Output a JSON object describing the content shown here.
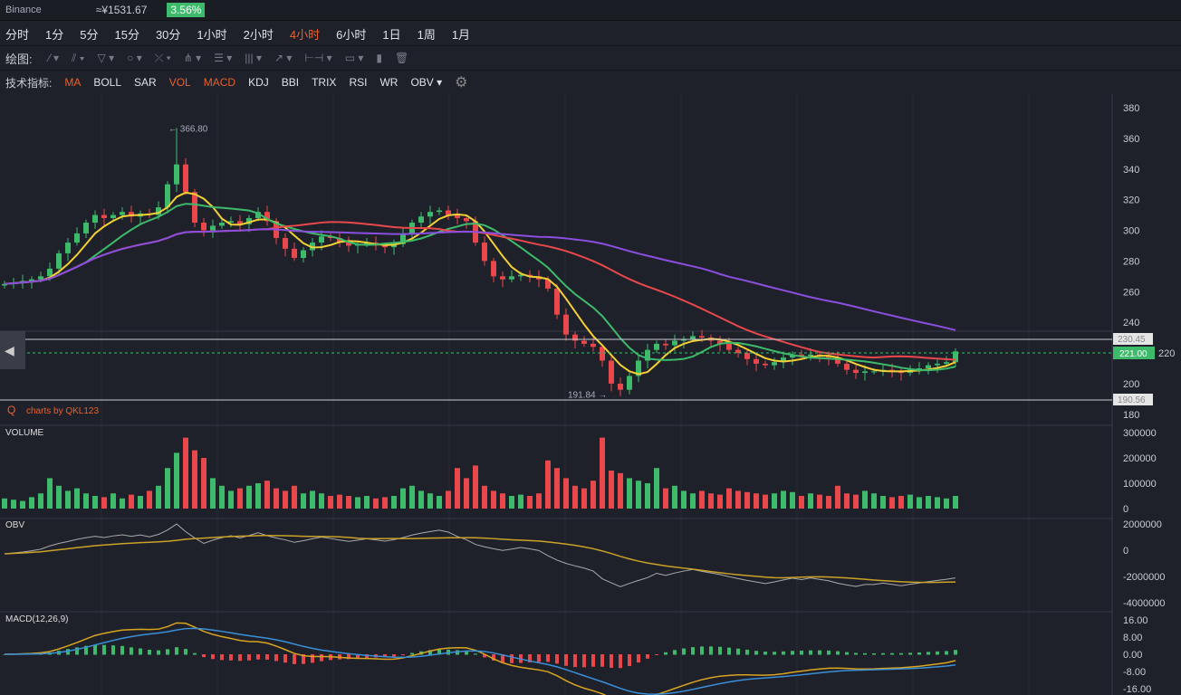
{
  "header": {
    "exchange": "Binance",
    "price_cny": "≈¥1531.67",
    "change": "3.56%"
  },
  "periods": [
    "分时",
    "1分",
    "5分",
    "15分",
    "30分",
    "1小时",
    "2小时",
    "4小时",
    "6小时",
    "1日",
    "1周",
    "1月"
  ],
  "active_period": "4小时",
  "drawing": {
    "label": "绘图:",
    "tools": [
      "line-icon",
      "parallel-line-icon",
      "triangle-icon",
      "circle-icon",
      "cross-icon",
      "pitchfork-icon",
      "fib-icon",
      "vertical-lines-icon",
      "arrow-icon",
      "measure-icon",
      "comment-icon",
      "bar-icon",
      "trash-icon"
    ]
  },
  "indicators": {
    "label": "技术指标:",
    "items": [
      "MA",
      "BOLL",
      "SAR",
      "VOL",
      "MACD",
      "KDJ",
      "BBI",
      "TRIX",
      "RSI",
      "WR",
      "OBV"
    ],
    "active": [
      "MA",
      "VOL",
      "MACD"
    ]
  },
  "colors": {
    "up": "#3dbb6b",
    "down": "#e8484b",
    "ma5": "#f3d034",
    "ma10": "#3dbb6b",
    "ma30": "#e8484b",
    "ma60": "#8b4fe0",
    "accent": "#e8602c"
  },
  "watermark": "charts by QKL123",
  "chart_data": [
    {
      "type": "candlestick",
      "title": "",
      "ylim": [
        180,
        380
      ],
      "yticks": [
        180,
        200,
        220,
        240,
        260,
        280,
        300,
        320,
        340,
        360,
        380
      ],
      "annotations": {
        "high": "366.80",
        "low": "191.84",
        "last": "221.00",
        "line_upper": "230.45",
        "line_lower": "190.56"
      },
      "closes": [
        265,
        266,
        267,
        268,
        270,
        275,
        285,
        292,
        298,
        305,
        310,
        308,
        310,
        312,
        309,
        311,
        310,
        315,
        330,
        343,
        325,
        305,
        300,
        303,
        305,
        306,
        304,
        308,
        312,
        306,
        295,
        288,
        282,
        287,
        292,
        296,
        295,
        292,
        290,
        291,
        292,
        290,
        289,
        291,
        298,
        305,
        309,
        312,
        313,
        310,
        308,
        306,
        292,
        280,
        270,
        268,
        270,
        271,
        270,
        268,
        262,
        245,
        232,
        228,
        226,
        224,
        215,
        200,
        196,
        205,
        215,
        222,
        226,
        225,
        228,
        229,
        231,
        230,
        228,
        226,
        222,
        220,
        216,
        213,
        212,
        214,
        217,
        219,
        218,
        219,
        218,
        217,
        213,
        209,
        207,
        208,
        208,
        209,
        208,
        207,
        209,
        210,
        212,
        213,
        214,
        221
      ]
    },
    {
      "type": "bar",
      "title": "VOLUME",
      "yticks": [
        "300000",
        "200000",
        "100000",
        "0"
      ],
      "values": [
        40000,
        35000,
        30000,
        45000,
        60000,
        120000,
        90000,
        70000,
        80000,
        60000,
        50000,
        45000,
        60000,
        40000,
        55000,
        50000,
        70000,
        90000,
        160000,
        220000,
        280000,
        230000,
        200000,
        120000,
        90000,
        70000,
        80000,
        90000,
        100000,
        110000,
        80000,
        70000,
        90000,
        60000,
        70000,
        60000,
        50000,
        55000,
        50000,
        45000,
        50000,
        40000,
        45000,
        50000,
        80000,
        90000,
        70000,
        60000,
        50000,
        70000,
        160000,
        120000,
        170000,
        90000,
        70000,
        60000,
        50000,
        55000,
        50000,
        60000,
        190000,
        160000,
        120000,
        90000,
        80000,
        110000,
        280000,
        150000,
        140000,
        120000,
        110000,
        100000,
        160000,
        80000,
        90000,
        70000,
        60000,
        70000,
        60000,
        55000,
        80000,
        70000,
        65000,
        60000,
        55000,
        60000,
        70000,
        65000,
        50000,
        60000,
        55000,
        50000,
        90000,
        60000,
        55000,
        70000,
        60000,
        50000,
        45000,
        50000,
        55000,
        45000,
        50000,
        45000,
        40000,
        50000
      ]
    },
    {
      "type": "line",
      "title": "OBV",
      "yticks": [
        "2000000",
        "0",
        "-2000000",
        "-4000000"
      ]
    },
    {
      "type": "line",
      "title": "MACD(12,26,9)",
      "yticks": [
        "16.00",
        "8.00",
        "0.00",
        "-8.00",
        "-16.00"
      ]
    }
  ]
}
